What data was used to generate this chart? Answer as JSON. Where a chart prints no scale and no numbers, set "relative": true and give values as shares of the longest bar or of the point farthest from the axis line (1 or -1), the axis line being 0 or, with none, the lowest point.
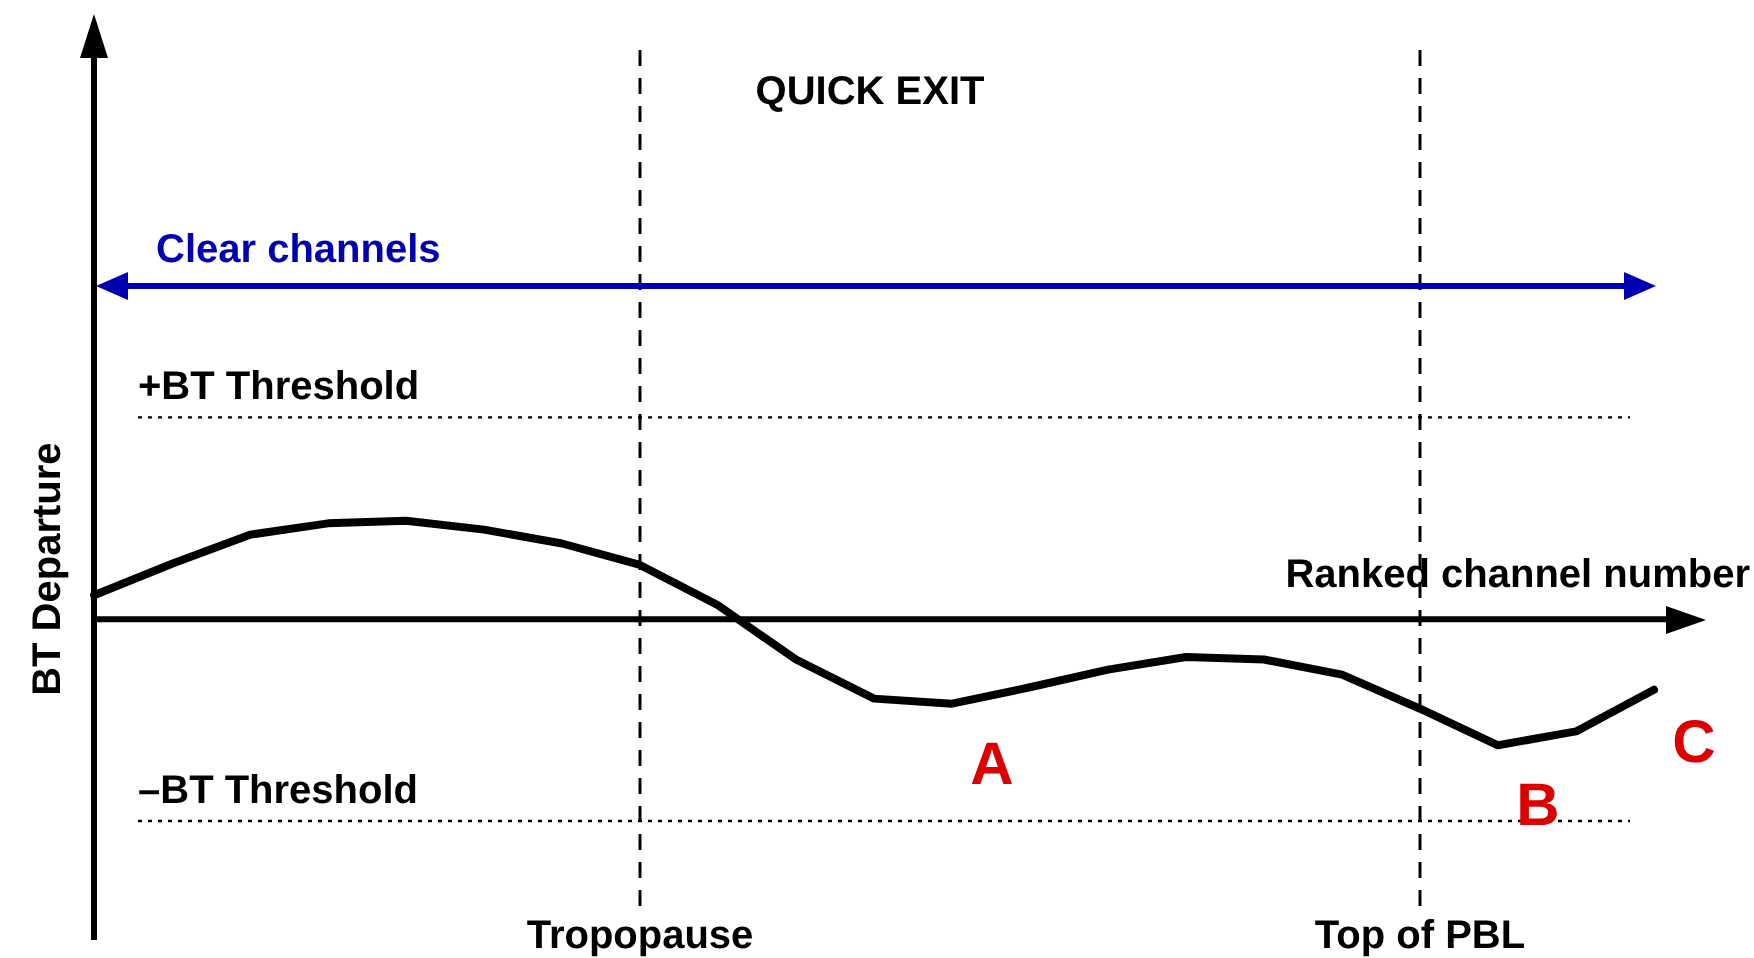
{
  "chart_data": {
    "type": "line",
    "title": "QUICK EXIT",
    "xlabel": "Ranked channel number",
    "ylabel": "BT Departure",
    "relative": true,
    "categories": [
      null,
      null,
      null,
      null,
      null,
      null,
      null,
      "Tropopause",
      null,
      null,
      null,
      null,
      null,
      null,
      null,
      null,
      null,
      "Top of PBL",
      null,
      null,
      null
    ],
    "series": [
      {
        "color": "#000000",
        "values": [
          0.19,
          0.44,
          0.67,
          0.76,
          0.78,
          0.71,
          0.6,
          0.43,
          0.11,
          -0.32,
          -0.63,
          -0.67,
          -0.54,
          -0.4,
          -0.3,
          -0.32,
          -0.44,
          -0.71,
          -1,
          -0.89,
          -0.56
        ]
      }
    ],
    "ref_lines": [
      {
        "axis": "y",
        "value": 1.6,
        "label": "+BT Threshold",
        "color": "#000000",
        "line_style": "dotted"
      },
      {
        "axis": "y",
        "value": -1.6,
        "label": "–BT Threshold",
        "color": "#000000",
        "line_style": "dotted"
      },
      {
        "axis": "x",
        "value": "Tropopause",
        "color": "#000000",
        "line_style": "dashed"
      },
      {
        "axis": "x",
        "value": "Top of PBL",
        "color": "#000000",
        "line_style": "dashed"
      }
    ],
    "annotations": [
      "Clear channels",
      {
        "text": "A",
        "y": -0.67
      },
      {
        "text": "B",
        "y": -1
      },
      "C"
    ],
    "grid": false,
    "legend": false
  }
}
